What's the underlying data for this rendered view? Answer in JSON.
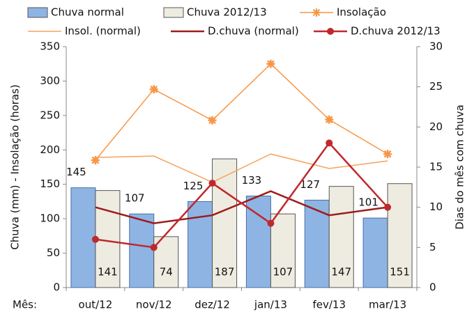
{
  "chart_data": {
    "type": "combo",
    "categories": [
      "out/12",
      "nov/12",
      "dez/12",
      "jan/13",
      "fev/13",
      "mar/13"
    ],
    "xlabel": "Mês:",
    "ylabel": "Chuva (mm) - Insolação (horas)",
    "y2label": "Dias do mês com chuva",
    "ylim": [
      0,
      350
    ],
    "yticks": [
      0,
      50,
      100,
      150,
      200,
      250,
      300,
      350
    ],
    "y2lim": [
      0,
      30
    ],
    "y2ticks": [
      0,
      5,
      10,
      15,
      20,
      25,
      30
    ],
    "grid": false,
    "series": [
      {
        "name": "Chuva normal",
        "type": "bar",
        "color": "#8eb4e3",
        "values": [
          145,
          107,
          125,
          133,
          127,
          101
        ]
      },
      {
        "name": "Chuva 2012/13",
        "type": "bar",
        "color": "#eeece1",
        "values": [
          141,
          74,
          187,
          107,
          147,
          151
        ]
      },
      {
        "name": "Insolação",
        "type": "line",
        "color": "#f79646",
        "marker": "star",
        "values": [
          185,
          288,
          243,
          325,
          244,
          194
        ]
      },
      {
        "name": "Insol. (normal)",
        "type": "line",
        "color": "#f5a35c",
        "marker": "none",
        "values": [
          189,
          191,
          153,
          194,
          173,
          184
        ]
      },
      {
        "name": "D.chuva (normal)",
        "type": "line",
        "axis": "y2",
        "color": "#9e1b1b",
        "marker": "none",
        "values": [
          10,
          8,
          9,
          12,
          9,
          10
        ]
      },
      {
        "name": "D.chuva 2012/13",
        "type": "line",
        "axis": "y2",
        "color": "#c0282d",
        "marker": "circle",
        "values": [
          6,
          5,
          13,
          8,
          18,
          10
        ]
      }
    ]
  }
}
